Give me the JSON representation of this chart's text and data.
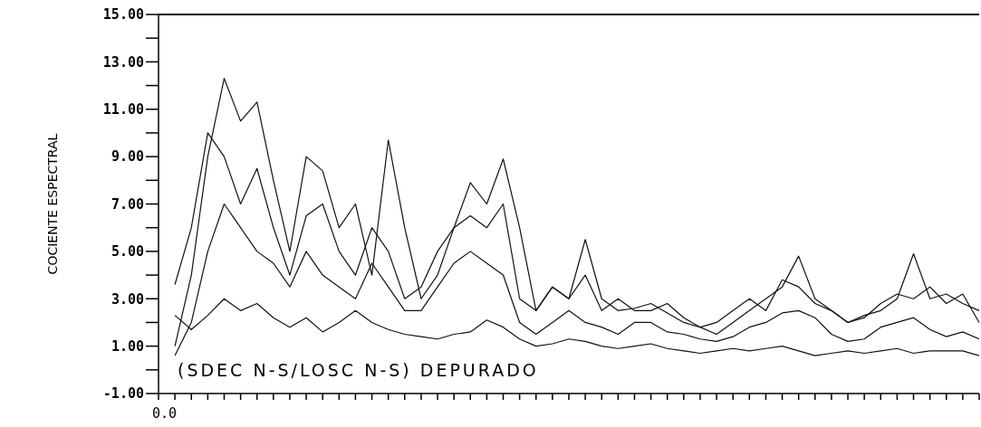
{
  "chart_data": {
    "type": "line",
    "ylabel": "COCIENTE ESPECTRAL",
    "annotations": [
      "(SDEC N-S/LOSC N-S) DEPURADO",
      "0.0"
    ],
    "categories": [
      null,
      null,
      null,
      null,
      null,
      null,
      null,
      null,
      null,
      null,
      null,
      null,
      null,
      null,
      null,
      null,
      null,
      null,
      null,
      null,
      null,
      null,
      null,
      null,
      null,
      null,
      null,
      null,
      null,
      null,
      null,
      null,
      null,
      null,
      null,
      null,
      null,
      null,
      null,
      null,
      null,
      null,
      null,
      null,
      null,
      null,
      null,
      null,
      null,
      null,
      null
    ],
    "ylim": [
      -1,
      15
    ],
    "yticks": [
      {
        "value": -1,
        "label": "-1.00"
      },
      {
        "value": 0,
        "label": null
      },
      {
        "value": 1,
        "label": "1.00"
      },
      {
        "value": 2,
        "label": null
      },
      {
        "value": 3,
        "label": "3.00"
      },
      {
        "value": 4,
        "label": null
      },
      {
        "value": 5,
        "label": "5.00"
      },
      {
        "value": 6,
        "label": null
      },
      {
        "value": 7,
        "label": "7.00"
      },
      {
        "value": 8,
        "label": null
      },
      {
        "value": 9,
        "label": "9.00"
      },
      {
        "value": 10,
        "label": null
      },
      {
        "value": 11,
        "label": "11.00"
      },
      {
        "value": 12,
        "label": null
      },
      {
        "value": 13,
        "label": "13.00"
      },
      {
        "value": 14,
        "label": null
      },
      {
        "value": 15,
        "label": "15.00"
      }
    ],
    "marker": "none",
    "line_style": "solid",
    "series": [
      {
        "color": "#111111",
        "values": [
          null,
          1.0,
          4,
          9,
          12.3,
          10.5,
          11.3,
          8,
          5,
          9,
          8.4,
          6,
          7,
          4,
          9.7,
          6,
          3,
          4,
          6,
          7.9,
          7,
          8.9,
          6,
          2.5,
          3.5,
          3,
          5.5,
          3,
          2.5,
          2.6,
          2.8,
          2.4,
          2,
          1.8,
          1.5,
          2,
          2.5,
          3,
          3.5,
          4.8,
          3,
          2.5,
          2,
          2.3,
          2.5,
          3,
          4.9,
          3,
          3.2,
          2.8,
          2.5
        ]
      },
      {
        "color": "#111111",
        "values": [
          null,
          3.6,
          6,
          10,
          9,
          7,
          8.5,
          6,
          4,
          6.5,
          7,
          5,
          4,
          6,
          5,
          3,
          3.5,
          5,
          6,
          6.5,
          6,
          7,
          3,
          2.5,
          3.5,
          3,
          4,
          2.5,
          3,
          2.5,
          2.5,
          2.8,
          2.2,
          1.8,
          2,
          2.5,
          3,
          2.5,
          3.8,
          3.5,
          2.8,
          2.5,
          2,
          2.2,
          2.8,
          3.2,
          3,
          3.5,
          2.8,
          3.2,
          2
        ]
      },
      {
        "color": "#111111",
        "values": [
          null,
          0.6,
          2,
          5,
          7,
          6,
          5,
          4.5,
          3.5,
          5,
          4,
          3.5,
          3,
          4.5,
          3.5,
          2.5,
          2.5,
          3.5,
          4.5,
          5,
          4.5,
          4,
          2,
          1.5,
          2,
          2.5,
          2,
          1.8,
          1.5,
          2,
          2,
          1.6,
          1.5,
          1.3,
          1.2,
          1.4,
          1.8,
          2,
          2.4,
          2.5,
          2.2,
          1.5,
          1.2,
          1.3,
          1.8,
          2,
          2.2,
          1.7,
          1.4,
          1.6,
          1.3
        ]
      },
      {
        "color": "#111111",
        "values": [
          null,
          2.3,
          1.7,
          2.3,
          3,
          2.5,
          2.8,
          2.2,
          1.8,
          2.2,
          1.6,
          2,
          2.5,
          2,
          1.7,
          1.5,
          1.4,
          1.3,
          1.5,
          1.6,
          2.1,
          1.8,
          1.3,
          1.0,
          1.1,
          1.3,
          1.2,
          1.0,
          0.9,
          1.0,
          1.1,
          0.9,
          0.8,
          0.7,
          0.8,
          0.9,
          0.8,
          0.9,
          1.0,
          0.8,
          0.6,
          0.7,
          0.8,
          0.7,
          0.8,
          0.9,
          0.7,
          0.8,
          0.8,
          0.8,
          0.6
        ]
      }
    ]
  }
}
